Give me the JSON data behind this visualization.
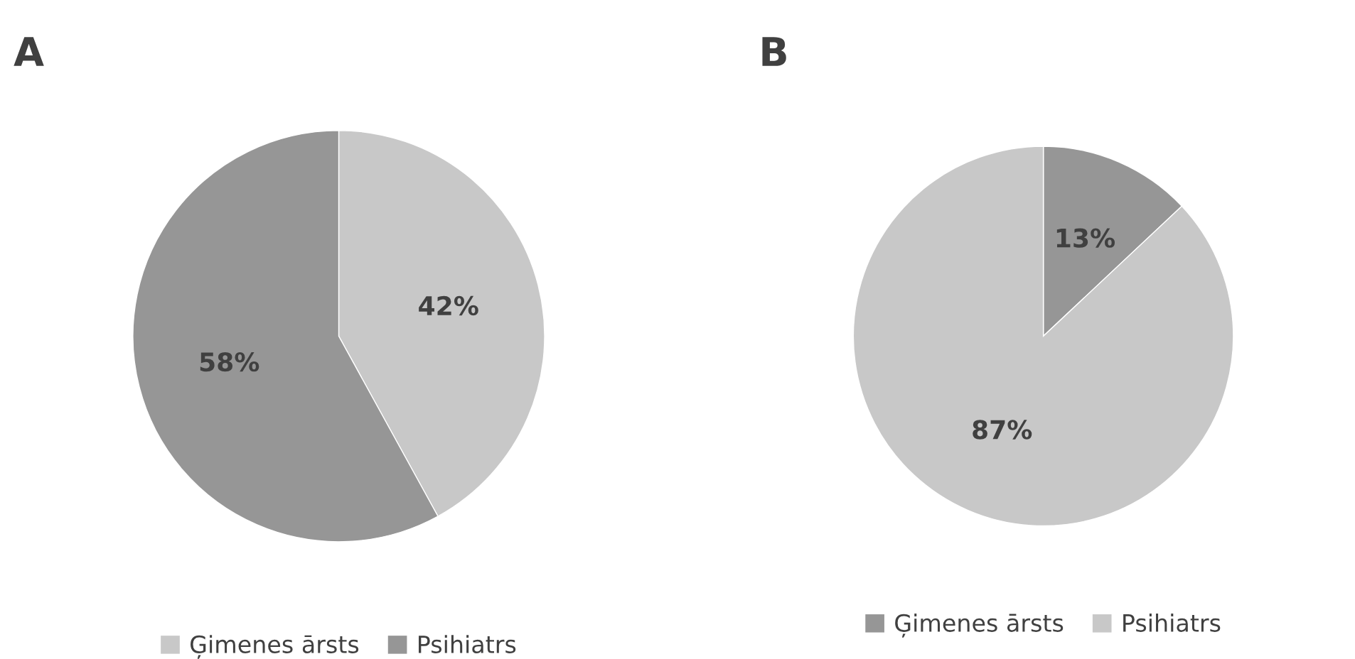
{
  "chart_data": [
    {
      "type": "pie",
      "title": "A",
      "categories": [
        "Ģimenes ārsts",
        "Psihiatrs"
      ],
      "values": [
        42,
        58
      ],
      "value_labels": [
        "42%",
        "58%"
      ],
      "colors": [
        "#c8c8c8",
        "#969696"
      ],
      "legend": "bottom"
    },
    {
      "type": "pie",
      "title": "B",
      "categories": [
        "Ģimenes ārsts",
        "Psihiatrs"
      ],
      "values": [
        13,
        87
      ],
      "value_labels": [
        "13%",
        "87%"
      ],
      "colors": [
        "#969696",
        "#c8c8c8"
      ],
      "legend": "bottom"
    }
  ]
}
